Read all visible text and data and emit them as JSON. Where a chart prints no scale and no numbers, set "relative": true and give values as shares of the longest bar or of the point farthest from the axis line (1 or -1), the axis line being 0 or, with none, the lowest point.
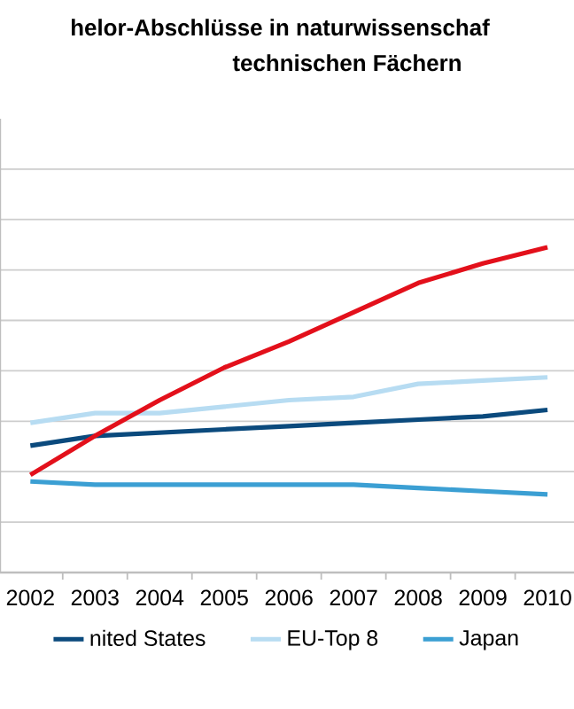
{
  "chart_data": {
    "type": "line",
    "title": "helor-Abschlüsse  in naturwissenschaf",
    "subtitle": "technischen Fächern",
    "relative": true,
    "grid": "y",
    "legend": "bottom",
    "marker": "none",
    "line_style": "solid",
    "categories": [
      "2002",
      "2003",
      "2004",
      "2005",
      "2006",
      "2007",
      "2008",
      "2009",
      "2010"
    ],
    "series": [
      {
        "name": "nited States",
        "color": "#0b4a7d",
        "values": [
          0.39,
          0.42,
          0.43,
          0.44,
          0.45,
          0.46,
          0.47,
          0.48,
          0.5
        ]
      },
      {
        "name": "EU-Top 8",
        "color": "#b7dcf2",
        "values": [
          0.46,
          0.49,
          0.49,
          0.51,
          0.53,
          0.54,
          0.58,
          0.59,
          0.6
        ]
      },
      {
        "name": "Japan",
        "color": "#3b9fd3",
        "values": [
          0.28,
          0.27,
          0.27,
          0.27,
          0.27,
          0.27,
          0.26,
          0.25,
          0.24
        ]
      },
      {
        "color": "#e3101b",
        "values": [
          0.3,
          0.42,
          0.53,
          0.63,
          0.71,
          0.8,
          0.89,
          0.95,
          1
        ]
      }
    ]
  }
}
